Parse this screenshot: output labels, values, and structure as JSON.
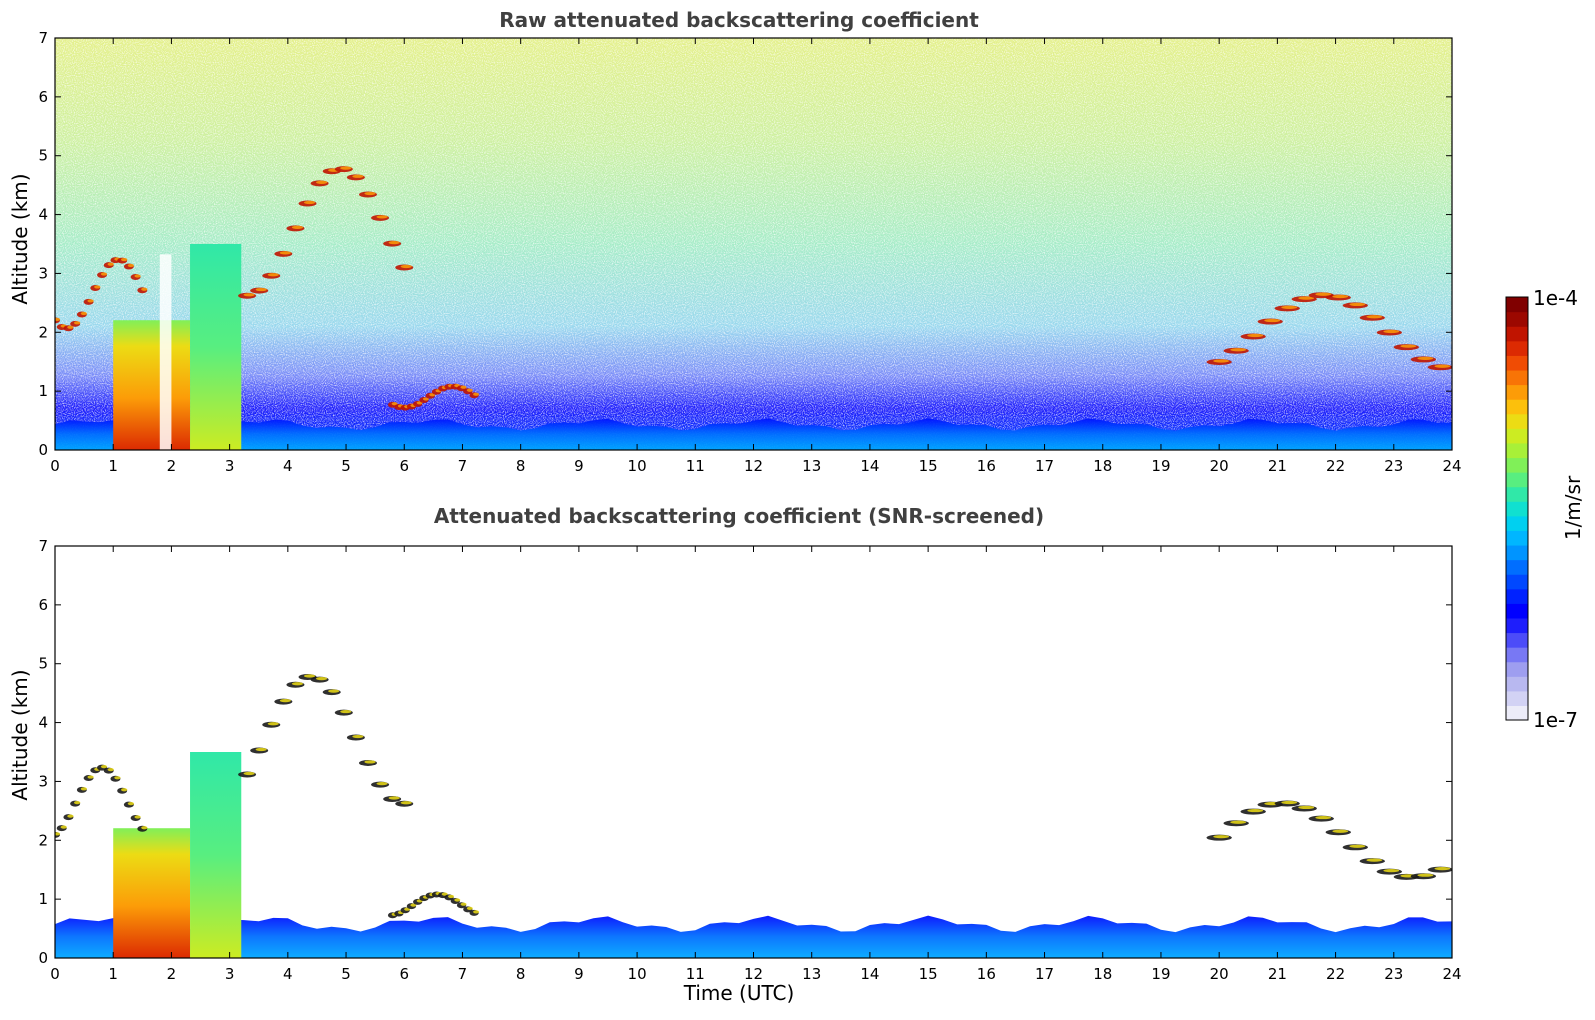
{
  "figure": {
    "colorbar": {
      "max_label": "1e-4",
      "min_label": "1e-7",
      "unit_label": "1/m/sr",
      "min_value": 1e-07,
      "max_value": 0.0001,
      "scale": "log",
      "colors": [
        "#ececf8",
        "#d2d2f4",
        "#b8b8f0",
        "#9e9ef0",
        "#7878f4",
        "#4c4cf8",
        "#1e1efc",
        "#0000ff",
        "#0022ff",
        "#0048ff",
        "#006eff",
        "#0094ff",
        "#00b6ff",
        "#00d0f0",
        "#10e0d0",
        "#30e8a8",
        "#58ee80",
        "#80f058",
        "#a8f038",
        "#ccec22",
        "#ecdc14",
        "#fcc00c",
        "#fc9c08",
        "#f87406",
        "#f04c04",
        "#dc2a02",
        "#c01400",
        "#9c0800",
        "#800000"
      ]
    }
  },
  "chart_data": [
    {
      "type": "heatmap",
      "title": "Raw attenuated backscattering coefficient",
      "xlabel": "",
      "ylabel": "Altitude (km)",
      "xlim": [
        0,
        24
      ],
      "ylim": [
        0,
        7
      ],
      "xticks": [
        "0",
        "1",
        "2",
        "3",
        "4",
        "5",
        "6",
        "7",
        "8",
        "9",
        "10",
        "11",
        "12",
        "13",
        "14",
        "15",
        "16",
        "17",
        "18",
        "19",
        "20",
        "21",
        "22",
        "23",
        "24"
      ],
      "yticks": [
        "0",
        "1",
        "2",
        "3",
        "4",
        "5",
        "6",
        "7"
      ],
      "colorbar_range": [
        1e-07,
        0.0001
      ],
      "features": [
        {
          "feature": "boundary layer aerosol",
          "x": [
            0,
            24
          ],
          "y": [
            0,
            0.6
          ]
        },
        {
          "feature": "thick cloud column",
          "x": [
            1.0,
            3.2
          ],
          "y": [
            0,
            3.5
          ]
        },
        {
          "feature": "cloud layer",
          "x": [
            0,
            1.5
          ],
          "y": [
            2.0,
            3.3
          ]
        },
        {
          "feature": "scattered cloud filaments",
          "x": [
            3.3,
            6.0
          ],
          "y": [
            2.5,
            4.9
          ]
        },
        {
          "feature": "thin cloud layer",
          "x": [
            5.8,
            7.2
          ],
          "y": [
            0.7,
            1.1
          ]
        },
        {
          "feature": "elevated cloud layer",
          "x": [
            20.0,
            23.8
          ],
          "y": [
            1.3,
            2.7
          ]
        }
      ]
    },
    {
      "type": "heatmap",
      "title": "Attenuated backscattering coefficient (SNR-screened)",
      "xlabel": "Time (UTC)",
      "ylabel": "Altitude (km)",
      "xlim": [
        0,
        24
      ],
      "ylim": [
        0,
        7
      ],
      "xticks": [
        "0",
        "1",
        "2",
        "3",
        "4",
        "5",
        "6",
        "7",
        "8",
        "9",
        "10",
        "11",
        "12",
        "13",
        "14",
        "15",
        "16",
        "17",
        "18",
        "19",
        "20",
        "21",
        "22",
        "23",
        "24"
      ],
      "yticks": [
        "0",
        "1",
        "2",
        "3",
        "4",
        "5",
        "6",
        "7"
      ],
      "colorbar_range": [
        1e-07,
        0.0001
      ],
      "features": [
        {
          "feature": "boundary layer aerosol",
          "x": [
            0,
            24
          ],
          "y": [
            0,
            0.8
          ]
        },
        {
          "feature": "thick cloud column",
          "x": [
            1.0,
            3.2
          ],
          "y": [
            0,
            3.5
          ]
        },
        {
          "feature": "cloud layer",
          "x": [
            0,
            1.5
          ],
          "y": [
            2.0,
            3.3
          ]
        },
        {
          "feature": "scattered cloud filaments",
          "x": [
            3.3,
            6.0
          ],
          "y": [
            2.5,
            4.9
          ]
        },
        {
          "feature": "thin cloud layer",
          "x": [
            5.8,
            7.2
          ],
          "y": [
            0.7,
            1.1
          ]
        },
        {
          "feature": "elevated cloud layer",
          "x": [
            20.0,
            23.8
          ],
          "y": [
            1.3,
            2.7
          ]
        }
      ]
    }
  ]
}
